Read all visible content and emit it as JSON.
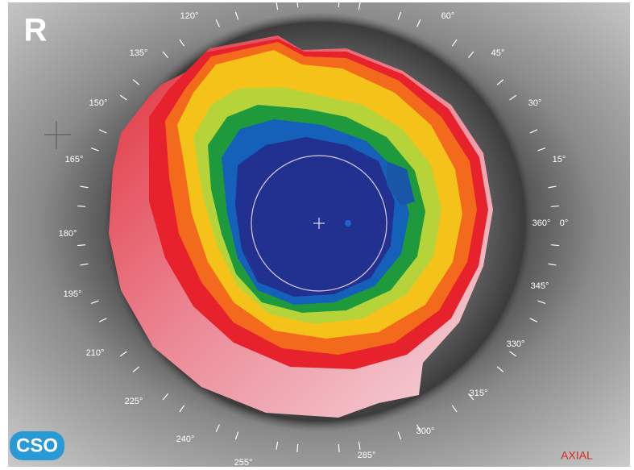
{
  "eye": "R",
  "logo": "CSO",
  "map_type": "AXIAL",
  "degree_labels": [
    "120°",
    "60°",
    "135°",
    "45°",
    "150°",
    "30°",
    "165°",
    "15°",
    "180°",
    "360°",
    "0°",
    "195°",
    "345°",
    "210°",
    "330°",
    "225°",
    "315°",
    "240°",
    "300°",
    "255°",
    "285°"
  ]
}
